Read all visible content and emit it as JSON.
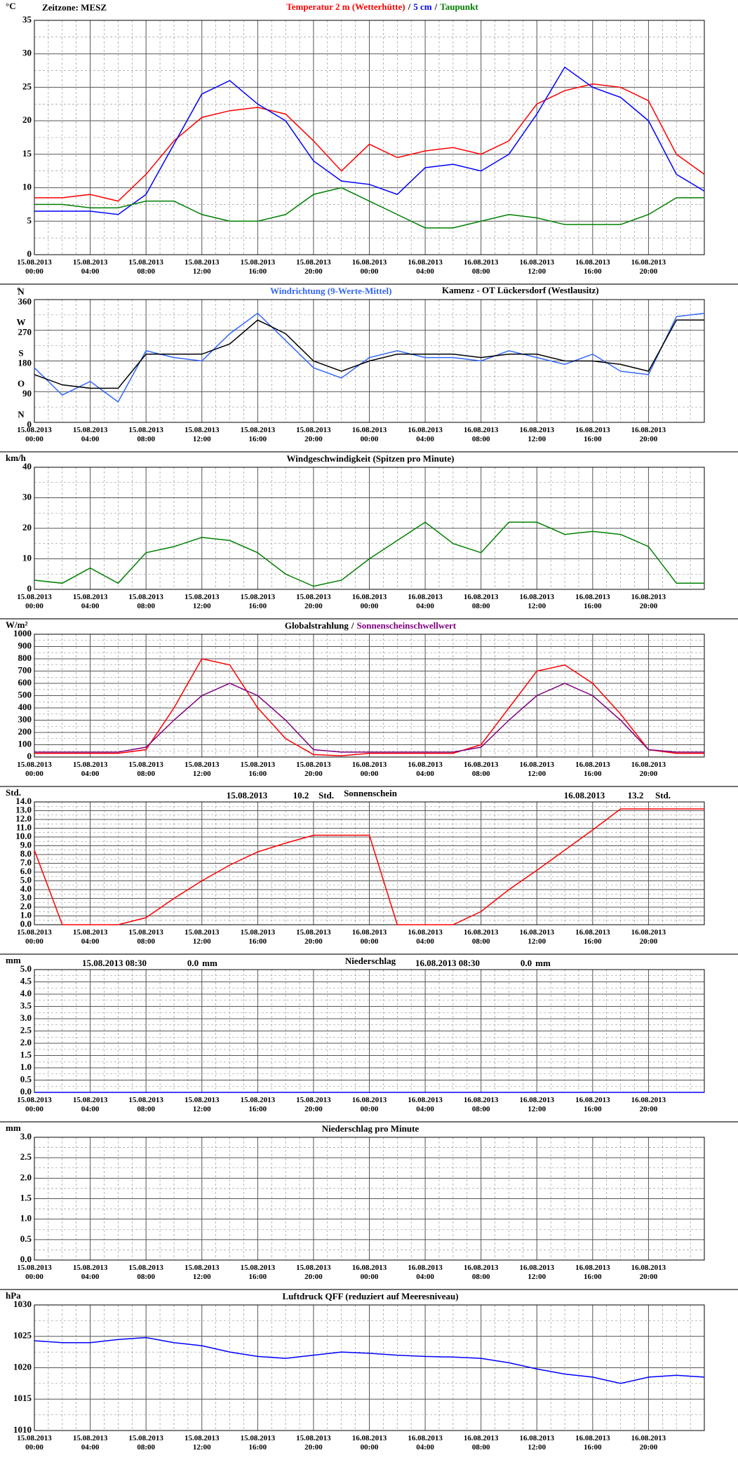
{
  "chart_data": [
    {
      "type": "line",
      "unit": "°C",
      "annotations": [
        "Zeitzone: MESZ"
      ],
      "legend_separator": "/",
      "categories": [
        "15.08.2013 00:00",
        null,
        "15.08.2013 04:00",
        null,
        "15.08.2013 08:00",
        null,
        "15.08.2013 12:00",
        null,
        "15.08.2013 16:00",
        null,
        "15.08.2013 20:00",
        null,
        "16.08.2013 00:00",
        null,
        "16.08.2013 04:00",
        null,
        "16.08.2013 08:00",
        null,
        "16.08.2013 12:00",
        null,
        "16.08.2013 16:00",
        null,
        "16.08.2013 20:00",
        null,
        null
      ],
      "ylim": [
        0,
        35
      ],
      "yticks": [
        0,
        5,
        10,
        15,
        20,
        25,
        30,
        35
      ],
      "series": [
        {
          "name": "Temperatur 2 m (Wetterhütte)",
          "color": "#ff0000",
          "values": [
            8.5,
            8.5,
            9.0,
            8.0,
            12,
            17,
            20.5,
            21.5,
            22,
            21,
            17,
            12.5,
            16.5,
            14.5,
            15.5,
            16,
            15,
            17,
            22.5,
            24.5,
            25.5,
            25,
            23,
            15,
            12
          ]
        },
        {
          "name": "5 cm",
          "color": "#0000ff",
          "values": [
            6.5,
            6.5,
            6.5,
            6.0,
            9,
            16.5,
            24,
            26,
            22.5,
            20,
            14,
            11,
            10.5,
            9,
            13,
            13.5,
            12.5,
            15,
            21,
            28,
            25,
            23.5,
            20,
            12,
            9.5
          ]
        },
        {
          "name": "Taupunkt",
          "color": "#008000",
          "values": [
            7.5,
            7.5,
            7,
            7,
            8,
            8,
            6,
            5,
            5,
            6,
            9,
            10,
            8,
            6,
            4,
            4,
            5,
            6,
            5.5,
            4.5,
            4.5,
            4.5,
            6,
            8.5,
            8.5
          ]
        }
      ]
    },
    {
      "type": "line",
      "unit": "°",
      "annotations": [
        "Kamenz - OT Lückersdorf (Westlausitz)"
      ],
      "categories": [
        "15.08.2013 00:00",
        null,
        "15.08.2013 04:00",
        null,
        "15.08.2013 08:00",
        null,
        "15.08.2013 12:00",
        null,
        "15.08.2013 16:00",
        null,
        "15.08.2013 20:00",
        null,
        "16.08.2013 00:00",
        null,
        "16.08.2013 04:00",
        null,
        "16.08.2013 08:00",
        null,
        "16.08.2013 12:00",
        null,
        "16.08.2013 16:00",
        null,
        "16.08.2013 20:00",
        null,
        null
      ],
      "ylim": [
        0,
        360
      ],
      "yticks": [
        0,
        90,
        180,
        270,
        360
      ],
      "ytick_letters": [
        "N",
        "O",
        "S",
        "W",
        "N"
      ],
      "series": [
        {
          "name": "Windrichtung (9-Werte-Mittel)",
          "color": "#3366ff",
          "values": [
            160,
            80,
            120,
            60,
            210,
            190,
            180,
            260,
            320,
            240,
            160,
            130,
            190,
            210,
            190,
            190,
            180,
            210,
            190,
            170,
            200,
            150,
            140,
            310,
            320
          ]
        },
        {
          "color": "#000000",
          "values": [
            140,
            110,
            100,
            100,
            200,
            200,
            200,
            230,
            300,
            260,
            180,
            150,
            180,
            200,
            200,
            200,
            190,
            200,
            200,
            180,
            180,
            170,
            150,
            300,
            300
          ]
        }
      ]
    },
    {
      "type": "line",
      "unit": "km/h",
      "title": "Windgeschwindigkeit (Spitzen pro Minute)",
      "categories": [
        "15.08.2013 00:00",
        null,
        "15.08.2013 04:00",
        null,
        "15.08.2013 08:00",
        null,
        "15.08.2013 12:00",
        null,
        "15.08.2013 16:00",
        null,
        "15.08.2013 20:00",
        null,
        "16.08.2013 00:00",
        null,
        "16.08.2013 04:00",
        null,
        "16.08.2013 08:00",
        null,
        "16.08.2013 12:00",
        null,
        "16.08.2013 16:00",
        null,
        "16.08.2013 20:00",
        null,
        null
      ],
      "ylim": [
        0,
        40
      ],
      "yticks": [
        0,
        10,
        20,
        30,
        40
      ],
      "series": [
        {
          "color": "#008000",
          "values": [
            3,
            2,
            7,
            2,
            12,
            14,
            17,
            16,
            12,
            5,
            1,
            3,
            10,
            16,
            22,
            15,
            12,
            22,
            22,
            18,
            19,
            18,
            14,
            2,
            2
          ]
        }
      ]
    },
    {
      "type": "line",
      "unit": "W/m²",
      "legend_separator": "/",
      "categories": [
        "15.08.2013 00:00",
        null,
        "15.08.2013 04:00",
        null,
        "15.08.2013 08:00",
        null,
        "15.08.2013 12:00",
        null,
        "15.08.2013 16:00",
        null,
        "15.08.2013 20:00",
        null,
        "16.08.2013 00:00",
        null,
        "16.08.2013 04:00",
        null,
        "16.08.2013 08:00",
        null,
        "16.08.2013 12:00",
        null,
        "16.08.2013 16:00",
        null,
        "16.08.2013 20:00",
        null,
        null
      ],
      "ylim": [
        0,
        1000
      ],
      "yticks": [
        0,
        100,
        200,
        300,
        400,
        500,
        600,
        700,
        800,
        900,
        1000
      ],
      "series": [
        {
          "name": "Globalstrahlung",
          "color": "#ff0000",
          "legend_color": "#000000",
          "values": [
            30,
            30,
            30,
            30,
            60,
            400,
            800,
            750,
            400,
            150,
            20,
            10,
            30,
            30,
            30,
            30,
            100,
            400,
            700,
            750,
            600,
            350,
            60,
            30,
            30
          ]
        },
        {
          "name": "Sonnenscheinschwellwert",
          "color": "#800080",
          "values": [
            40,
            40,
            40,
            40,
            80,
            300,
            500,
            600,
            500,
            300,
            60,
            40,
            40,
            40,
            40,
            40,
            80,
            300,
            500,
            600,
            500,
            300,
            60,
            40,
            40
          ]
        }
      ]
    },
    {
      "type": "line",
      "unit": "Std.",
      "title": "Sonnenschein",
      "annotations": [
        "15.08.2013",
        "10.2",
        "Std.",
        "16.08.2013",
        "13.2",
        "Std."
      ],
      "categories": [
        "15.08.2013 00:00",
        null,
        "15.08.2013 04:00",
        null,
        "15.08.2013 08:00",
        null,
        "15.08.2013 12:00",
        null,
        "15.08.2013 16:00",
        null,
        "15.08.2013 20:00",
        null,
        "16.08.2013 00:00",
        null,
        "16.08.2013 04:00",
        null,
        "16.08.2013 08:00",
        null,
        "16.08.2013 12:00",
        null,
        "16.08.2013 16:00",
        null,
        "16.08.2013 20:00",
        null,
        null
      ],
      "ylim": [
        0,
        14
      ],
      "yticks": [
        {
          "value": 0,
          "label": "0.0"
        },
        {
          "value": 1,
          "label": "1.0"
        },
        {
          "value": 2,
          "label": "2.0"
        },
        {
          "value": 3,
          "label": "3.0"
        },
        {
          "value": 4,
          "label": "4.0"
        },
        {
          "value": 5,
          "label": "5.0"
        },
        {
          "value": 6,
          "label": "6.0"
        },
        {
          "value": 7,
          "label": "7.0"
        },
        {
          "value": 8,
          "label": "8.0"
        },
        {
          "value": 9,
          "label": "9.0"
        },
        {
          "value": 10,
          "label": "10.0"
        },
        {
          "value": 11,
          "label": "11.0"
        },
        {
          "value": 12,
          "label": "12.0"
        },
        {
          "value": 13,
          "label": "13.0"
        },
        {
          "value": 14,
          "label": "14.0"
        }
      ],
      "series": [
        {
          "color": "#ff0000",
          "values": [
            8.5,
            0,
            0,
            0,
            0.8,
            3.0,
            5.0,
            6.8,
            8.3,
            9.3,
            10.2,
            10.2,
            10.2,
            0,
            0,
            0,
            1.5,
            4,
            6.2,
            8.5,
            10.8,
            13.2,
            13.2,
            13.2,
            13.2
          ]
        }
      ]
    },
    {
      "type": "line",
      "unit": "mm",
      "title": "Niederschlag",
      "annotations": [
        "15.08.2013 08:30",
        "0.0",
        "mm",
        "16.08.2013 08:30",
        "0.0",
        "mm"
      ],
      "categories": [
        "15.08.2013 00:00",
        null,
        "15.08.2013 04:00",
        null,
        "15.08.2013 08:00",
        null,
        "15.08.2013 12:00",
        null,
        "15.08.2013 16:00",
        null,
        "15.08.2013 20:00",
        null,
        "16.08.2013 00:00",
        null,
        "16.08.2013 04:00",
        null,
        "16.08.2013 08:00",
        null,
        "16.08.2013 12:00",
        null,
        "16.08.2013 16:00",
        null,
        "16.08.2013 20:00",
        null,
        null
      ],
      "ylim": [
        0,
        5
      ],
      "yticks": [
        {
          "value": 0,
          "label": "0.0"
        },
        {
          "value": 0.5,
          "label": "0.5"
        },
        {
          "value": 1,
          "label": "1.0"
        },
        {
          "value": 1.5,
          "label": "1.5"
        },
        {
          "value": 2,
          "label": "2.0"
        },
        {
          "value": 2.5,
          "label": "2.5"
        },
        {
          "value": 3,
          "label": "3.0"
        },
        {
          "value": 3.5,
          "label": "3.5"
        },
        {
          "value": 4,
          "label": "4.0"
        },
        {
          "value": 4.5,
          "label": "4.5"
        },
        {
          "value": 5,
          "label": "5.0"
        }
      ],
      "series": [
        {
          "color": "#0000ff",
          "values": [
            0,
            0,
            0,
            0,
            0,
            0,
            0,
            0,
            0,
            0,
            0,
            0,
            0,
            0,
            0,
            0,
            0,
            0,
            0,
            0,
            0,
            0,
            0,
            0,
            0
          ]
        }
      ]
    },
    {
      "type": "line",
      "unit": "mm",
      "title": "Niederschlag pro Minute",
      "categories": [
        "15.08.2013 00:00",
        null,
        "15.08.2013 04:00",
        null,
        "15.08.2013 08:00",
        null,
        "15.08.2013 12:00",
        null,
        "15.08.2013 16:00",
        null,
        "15.08.2013 20:00",
        null,
        "16.08.2013 00:00",
        null,
        "16.08.2013 04:00",
        null,
        "16.08.2013 08:00",
        null,
        "16.08.2013 12:00",
        null,
        "16.08.2013 16:00",
        null,
        "16.08.2013 20:00",
        null,
        null
      ],
      "ylim": [
        0,
        3
      ],
      "yticks": [
        {
          "value": 0,
          "label": "0.0"
        },
        {
          "value": 0.5,
          "label": "0.5"
        },
        {
          "value": 1,
          "label": "1.0"
        },
        {
          "value": 1.5,
          "label": "1.5"
        },
        {
          "value": 2,
          "label": "2.0"
        },
        {
          "value": 2.5,
          "label": "2.5"
        },
        {
          "value": 3,
          "label": "3.0"
        }
      ],
      "series": []
    },
    {
      "type": "line",
      "unit": "hPa",
      "title": "Luftdruck QFF (reduziert auf Meeresniveau)",
      "categories": [
        "15.08.2013 00:00",
        null,
        "15.08.2013 04:00",
        null,
        "15.08.2013 08:00",
        null,
        "15.08.2013 12:00",
        null,
        "15.08.2013 16:00",
        null,
        "15.08.2013 20:00",
        null,
        "16.08.2013 00:00",
        null,
        "16.08.2013 04:00",
        null,
        "16.08.2013 08:00",
        null,
        "16.08.2013 12:00",
        null,
        "16.08.2013 16:00",
        null,
        "16.08.2013 20:00",
        null,
        null
      ],
      "ylim": [
        1010,
        1030
      ],
      "yticks": [
        1010,
        1015,
        1020,
        1025,
        1030
      ],
      "series": [
        {
          "color": "#0000ff",
          "values": [
            1024.3,
            1024,
            1024,
            1024.5,
            1024.8,
            1024,
            1023.5,
            1022.5,
            1021.8,
            1021.5,
            1022,
            1022.5,
            1022.3,
            1022,
            1021.8,
            1021.7,
            1021.5,
            1020.8,
            1019.8,
            1019,
            1018.5,
            1017.5,
            1018.5,
            1018.8,
            1018.5
          ]
        }
      ]
    }
  ]
}
